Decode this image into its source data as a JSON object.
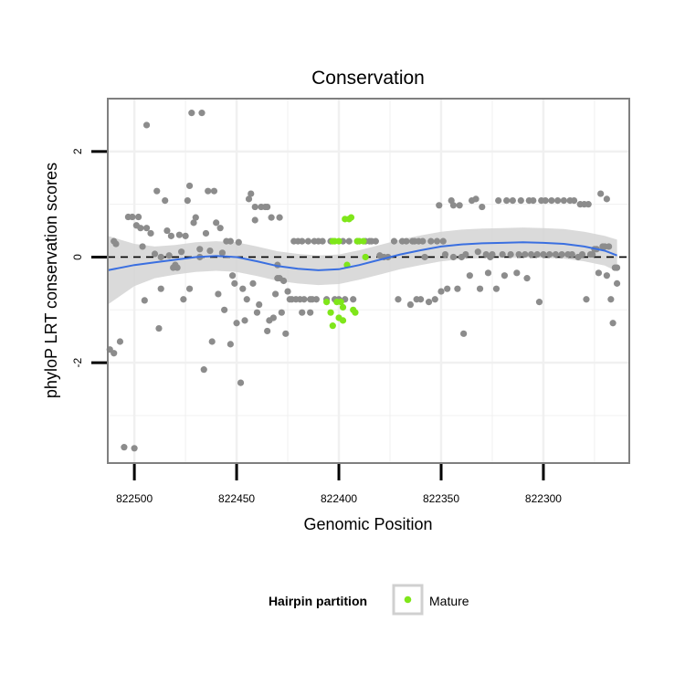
{
  "chart_data": {
    "type": "scatter",
    "title": "Conservation",
    "xlabel": "Genomic Position",
    "ylabel": "phyloP LRT conservation scores",
    "x_reversed": true,
    "xlim": [
      822513,
      822258
    ],
    "ylim": [
      -3.9,
      3.0
    ],
    "x_ticks": [
      822500,
      822450,
      822400,
      822350,
      822300
    ],
    "y_ticks": [
      2,
      0,
      -2
    ],
    "reference_line": {
      "y": 0,
      "style": "dashed",
      "color": "#000000"
    },
    "grid": true,
    "legend": {
      "title": "Hairpin partition",
      "position": "bottom",
      "entries": [
        "Mature"
      ]
    },
    "colors": {
      "background": "#ffffff",
      "other": "#8c8c8c",
      "mature": "#7fe61a",
      "smooth": "#3a6fe0",
      "ribbon": "#d4d4d4",
      "grid": "#f0f0f0",
      "border": "#7f7f7f"
    },
    "series": [
      {
        "name": "",
        "color": "#8c8c8c",
        "points": [
          [
            822512,
            -1.75
          ],
          [
            822510,
            -1.82
          ],
          [
            822510,
            0.3
          ],
          [
            822509,
            0.25
          ],
          [
            822507,
            -1.6
          ],
          [
            822505,
            -3.6
          ],
          [
            822503,
            0.76
          ],
          [
            822501,
            0.76
          ],
          [
            822499,
            0.6
          ],
          [
            822500,
            -3.62
          ],
          [
            822498,
            0.76
          ],
          [
            822497,
            0.55
          ],
          [
            822496,
            0.2
          ],
          [
            822495,
            -0.82
          ],
          [
            822494,
            0.55
          ],
          [
            822494,
            2.5
          ],
          [
            822492,
            0.45
          ],
          [
            822490,
            0.06
          ],
          [
            822489,
            1.25
          ],
          [
            822488,
            -1.35
          ],
          [
            822487,
            -0.6
          ],
          [
            822487,
            0.0
          ],
          [
            822485,
            1.07
          ],
          [
            822484,
            0.5
          ],
          [
            822483,
            0.03
          ],
          [
            822482,
            0.4
          ],
          [
            822481,
            -0.2
          ],
          [
            822480,
            -0.15
          ],
          [
            822479,
            -0.2
          ],
          [
            822478,
            0.42
          ],
          [
            822477,
            0.1
          ],
          [
            822476,
            -0.8
          ],
          [
            822475,
            0.4
          ],
          [
            822474,
            1.07
          ],
          [
            822473,
            -0.6
          ],
          [
            822473,
            1.35
          ],
          [
            822472,
            2.73
          ],
          [
            822471,
            0.65
          ],
          [
            822470,
            0.75
          ],
          [
            822468,
            0.15
          ],
          [
            822468,
            0.0
          ],
          [
            822467,
            2.73
          ],
          [
            822466,
            -2.13
          ],
          [
            822465,
            0.45
          ],
          [
            822464,
            1.25
          ],
          [
            822463,
            0.12
          ],
          [
            822462,
            -1.6
          ],
          [
            822461,
            1.25
          ],
          [
            822460,
            0.65
          ],
          [
            822459,
            -0.7
          ],
          [
            822458,
            0.55
          ],
          [
            822457,
            0.08
          ],
          [
            822456,
            -1.0
          ],
          [
            822455,
            0.3
          ],
          [
            822453,
            0.3
          ],
          [
            822453,
            -1.65
          ],
          [
            822452,
            -0.35
          ],
          [
            822451,
            -0.5
          ],
          [
            822450,
            -1.25
          ],
          [
            822449,
            0.28
          ],
          [
            822448,
            -2.38
          ],
          [
            822447,
            -0.6
          ],
          [
            822446,
            -1.2
          ],
          [
            822445,
            -0.8
          ],
          [
            822444,
            1.1
          ],
          [
            822443,
            1.2
          ],
          [
            822442,
            -0.5
          ],
          [
            822441,
            0.7
          ],
          [
            822441,
            0.95
          ],
          [
            822440,
            -1.05
          ],
          [
            822439,
            -0.9
          ],
          [
            822438,
            0.95
          ],
          [
            822436,
            0.95
          ],
          [
            822435,
            -1.4
          ],
          [
            822435,
            0.95
          ],
          [
            822434,
            -1.2
          ],
          [
            822433,
            0.75
          ],
          [
            822432,
            -1.15
          ],
          [
            822431,
            -0.7
          ],
          [
            822430,
            -0.15
          ],
          [
            822430,
            -0.4
          ],
          [
            822429,
            -0.4
          ],
          [
            822429,
            0.75
          ],
          [
            822428,
            -1.05
          ],
          [
            822427,
            -0.45
          ],
          [
            822426,
            -1.45
          ],
          [
            822425,
            -0.65
          ],
          [
            822424,
            -0.8
          ],
          [
            822423,
            -0.8
          ],
          [
            822422,
            0.3
          ],
          [
            822421,
            -0.8
          ],
          [
            822420,
            0.3
          ],
          [
            822419,
            -0.8
          ],
          [
            822418,
            0.3
          ],
          [
            822418,
            -1.05
          ],
          [
            822417,
            -0.8
          ],
          [
            822415,
            0.3
          ],
          [
            822414,
            -0.8
          ],
          [
            822414,
            -1.05
          ],
          [
            822413,
            -0.8
          ],
          [
            822412,
            0.3
          ],
          [
            822411,
            -0.8
          ],
          [
            822410,
            0.3
          ],
          [
            822408,
            0.3
          ],
          [
            822406,
            -0.8
          ],
          [
            822404,
            0.3
          ],
          [
            822402,
            -0.8
          ],
          [
            822400,
            -0.8
          ],
          [
            822398,
            0.3
          ],
          [
            822397,
            -0.8
          ],
          [
            822395,
            0.3
          ],
          [
            822393,
            -0.8
          ],
          [
            822391,
            0.3
          ],
          [
            822387,
            0.3
          ],
          [
            822385,
            0.3
          ],
          [
            822384,
            0.3
          ],
          [
            822382,
            0.3
          ],
          [
            822380,
            0.03
          ],
          [
            822378,
            0.0
          ],
          [
            822376,
            0.0
          ],
          [
            822373,
            0.3
          ],
          [
            822371,
            -0.8
          ],
          [
            822369,
            0.3
          ],
          [
            822367,
            0.3
          ],
          [
            822365,
            -0.9
          ],
          [
            822364,
            0.3
          ],
          [
            822363,
            0.3
          ],
          [
            822362,
            -0.8
          ],
          [
            822361,
            0.3
          ],
          [
            822360,
            -0.8
          ],
          [
            822359,
            0.3
          ],
          [
            822358,
            0.0
          ],
          [
            822356,
            -0.85
          ],
          [
            822355,
            0.3
          ],
          [
            822353,
            -0.8
          ],
          [
            822352,
            0.3
          ],
          [
            822351,
            0.98
          ],
          [
            822350,
            -0.65
          ],
          [
            822349,
            0.3
          ],
          [
            822348,
            0.05
          ],
          [
            822347,
            -0.6
          ],
          [
            822345,
            1.07
          ],
          [
            822344,
            0.0
          ],
          [
            822344,
            0.98
          ],
          [
            822342,
            -0.6
          ],
          [
            822341,
            0.98
          ],
          [
            822340,
            0.0
          ],
          [
            822339,
            -1.45
          ],
          [
            822338,
            0.05
          ],
          [
            822336,
            -0.35
          ],
          [
            822335,
            1.07
          ],
          [
            822333,
            1.1
          ],
          [
            822332,
            0.1
          ],
          [
            822331,
            -0.6
          ],
          [
            822330,
            0.95
          ],
          [
            822328,
            0.05
          ],
          [
            822327,
            -0.3
          ],
          [
            822326,
            0.0
          ],
          [
            822325,
            0.05
          ],
          [
            822323,
            -0.6
          ],
          [
            822322,
            1.07
          ],
          [
            822320,
            0.05
          ],
          [
            822319,
            -0.35
          ],
          [
            822318,
            1.07
          ],
          [
            822316,
            0.05
          ],
          [
            822315,
            1.07
          ],
          [
            822313,
            -0.3
          ],
          [
            822312,
            0.05
          ],
          [
            822311,
            1.07
          ],
          [
            822309,
            0.05
          ],
          [
            822308,
            -0.4
          ],
          [
            822307,
            1.07
          ],
          [
            822306,
            0.05
          ],
          [
            822305,
            1.07
          ],
          [
            822303,
            0.05
          ],
          [
            822302,
            -0.85
          ],
          [
            822301,
            1.07
          ],
          [
            822300,
            0.05
          ],
          [
            822299,
            1.07
          ],
          [
            822297,
            0.05
          ],
          [
            822296,
            1.07
          ],
          [
            822294,
            0.05
          ],
          [
            822293,
            1.07
          ],
          [
            822291,
            0.05
          ],
          [
            822290,
            1.07
          ],
          [
            822288,
            0.05
          ],
          [
            822287,
            1.07
          ],
          [
            822286,
            0.05
          ],
          [
            822285,
            1.07
          ],
          [
            822283,
            0.0
          ],
          [
            822282,
            1.0
          ],
          [
            822281,
            0.05
          ],
          [
            822280,
            1.0
          ],
          [
            822279,
            -0.8
          ],
          [
            822278,
            1.0
          ],
          [
            822277,
            0.05
          ],
          [
            822276,
            0.05
          ],
          [
            822275,
            0.15
          ],
          [
            822274,
            0.15
          ],
          [
            822273,
            -0.3
          ],
          [
            822272,
            1.2
          ],
          [
            822271,
            0.2
          ],
          [
            822270,
            0.2
          ],
          [
            822269,
            -0.35
          ],
          [
            822269,
            1.1
          ],
          [
            822268,
            0.2
          ],
          [
            822267,
            -0.8
          ],
          [
            822266,
            -1.25
          ],
          [
            822265,
            -0.2
          ],
          [
            822264,
            -0.5
          ],
          [
            822264,
            -0.2
          ]
        ]
      },
      {
        "name": "Mature",
        "color": "#7fe61a",
        "points": [
          [
            822406,
            -0.85
          ],
          [
            822404,
            -1.05
          ],
          [
            822403,
            -1.3
          ],
          [
            822403,
            0.3
          ],
          [
            822402,
            0.3
          ],
          [
            822401,
            -0.85
          ],
          [
            822400,
            -1.15
          ],
          [
            822400,
            0.3
          ],
          [
            822399,
            -0.85
          ],
          [
            822398,
            -0.95
          ],
          [
            822398,
            -1.2
          ],
          [
            822397,
            0.72
          ],
          [
            822396,
            -0.15
          ],
          [
            822395,
            0.72
          ],
          [
            822394,
            0.75
          ],
          [
            822393,
            -1.0
          ],
          [
            822392,
            -1.05
          ],
          [
            822391,
            0.3
          ],
          [
            822390,
            0.3
          ],
          [
            822388,
            0.3
          ],
          [
            822387,
            0.0
          ]
        ]
      }
    ],
    "smooth": {
      "x": [
        822513,
        822500,
        822490,
        822480,
        822470,
        822460,
        822450,
        822440,
        822430,
        822420,
        822410,
        822400,
        822390,
        822380,
        822370,
        822360,
        822350,
        822340,
        822330,
        822320,
        822310,
        822300,
        822290,
        822280,
        822270,
        822264
      ],
      "y": [
        -0.25,
        -0.15,
        -0.1,
        -0.05,
        0.0,
        0.02,
        0.0,
        -0.08,
        -0.17,
        -0.22,
        -0.25,
        -0.23,
        -0.15,
        -0.05,
        0.05,
        0.13,
        0.2,
        0.24,
        0.26,
        0.27,
        0.28,
        0.27,
        0.25,
        0.2,
        0.12,
        0.03
      ],
      "band": [
        0.65,
        0.4,
        0.3,
        0.28,
        0.28,
        0.28,
        0.28,
        0.28,
        0.28,
        0.28,
        0.28,
        0.28,
        0.28,
        0.28,
        0.28,
        0.28,
        0.28,
        0.28,
        0.28,
        0.28,
        0.28,
        0.28,
        0.28,
        0.28,
        0.28,
        0.3
      ]
    }
  }
}
